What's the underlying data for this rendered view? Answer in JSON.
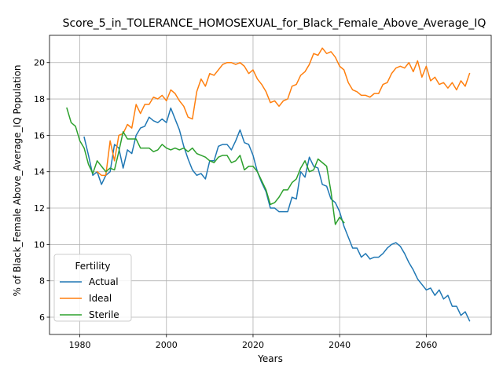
{
  "chart_data": {
    "type": "line",
    "title": "Score_5_in_TOLERANCE_HOMOSEXUAL_for_Black_Female_Above_Average_IQ",
    "xlabel": "Years",
    "ylabel": "% of Black_Female Above_Average_IQ Population",
    "xlim": [
      1973,
      2075
    ],
    "ylim": [
      5.05,
      21.5
    ],
    "x_ticks": [
      1980,
      2000,
      2020,
      2040,
      2060
    ],
    "y_ticks": [
      6,
      8,
      10,
      12,
      14,
      16,
      18,
      20
    ],
    "grid": true,
    "legend": {
      "title": "Fertility",
      "placement": "lower-left"
    },
    "series": [
      {
        "name": "Actual",
        "color": "#1f77b4",
        "x": [
          1981,
          1982,
          1983,
          1984,
          1985,
          1986,
          1987,
          1988,
          1989,
          1990,
          1991,
          1992,
          1993,
          1994,
          1995,
          1996,
          1997,
          1998,
          1999,
          2000,
          2001,
          2002,
          2003,
          2004,
          2005,
          2006,
          2007,
          2008,
          2009,
          2010,
          2011,
          2012,
          2013,
          2014,
          2015,
          2016,
          2017,
          2018,
          2019,
          2020,
          2021,
          2022,
          2023,
          2024,
          2025,
          2026,
          2027,
          2028,
          2029,
          2030,
          2031,
          2032,
          2033,
          2034,
          2035,
          2036,
          2037,
          2038,
          2039,
          2040,
          2041,
          2042,
          2043,
          2044,
          2045,
          2046,
          2047,
          2048,
          2049,
          2050,
          2051,
          2052,
          2053,
          2054,
          2055,
          2056,
          2057,
          2058,
          2059,
          2060,
          2061,
          2062,
          2063,
          2064,
          2065,
          2066,
          2067,
          2068,
          2069,
          2070
        ],
        "y": [
          15.9,
          14.9,
          13.8,
          14.0,
          13.3,
          13.8,
          14.0,
          15.5,
          15.3,
          14.2,
          15.2,
          15.0,
          16.0,
          16.4,
          16.5,
          17.0,
          16.8,
          16.7,
          16.9,
          16.7,
          17.5,
          16.9,
          16.3,
          15.4,
          14.7,
          14.1,
          13.8,
          13.9,
          13.6,
          14.6,
          14.6,
          15.4,
          15.5,
          15.5,
          15.2,
          15.7,
          16.3,
          15.6,
          15.5,
          14.9,
          14.0,
          13.4,
          12.9,
          12.0,
          12.0,
          11.8,
          11.8,
          11.8,
          12.6,
          12.5,
          14.0,
          13.7,
          14.8,
          14.3,
          14.2,
          13.3,
          13.2,
          12.5,
          12.3,
          11.8,
          11.0,
          10.4,
          9.8,
          9.8,
          9.3,
          9.5,
          9.2,
          9.3,
          9.3,
          9.5,
          9.8,
          10.0,
          10.1,
          9.9,
          9.5,
          9.0,
          8.6,
          8.1,
          7.8,
          7.5,
          7.6,
          7.2,
          7.5,
          7.0,
          7.2,
          6.6,
          6.6,
          6.1,
          6.3,
          5.8
        ]
      },
      {
        "name": "Ideal",
        "color": "#ff7f0e",
        "x": [
          1984,
          1985,
          1986,
          1987,
          1988,
          1989,
          1990,
          1991,
          1992,
          1993,
          1994,
          1995,
          1996,
          1997,
          1998,
          1999,
          2000,
          2001,
          2002,
          2003,
          2004,
          2005,
          2006,
          2007,
          2008,
          2009,
          2010,
          2011,
          2012,
          2013,
          2014,
          2015,
          2016,
          2017,
          2018,
          2019,
          2020,
          2021,
          2022,
          2023,
          2024,
          2025,
          2026,
          2027,
          2028,
          2029,
          2030,
          2031,
          2032,
          2033,
          2034,
          2035,
          2036,
          2037,
          2038,
          2039,
          2040,
          2041,
          2042,
          2043,
          2044,
          2045,
          2046,
          2047,
          2048,
          2049,
          2050,
          2051,
          2052,
          2053,
          2054,
          2055,
          2056,
          2057,
          2058,
          2059,
          2060,
          2061,
          2062,
          2063,
          2064,
          2065,
          2066,
          2067,
          2068,
          2069,
          2070
        ],
        "y": [
          14.0,
          13.8,
          13.8,
          15.7,
          14.6,
          16.0,
          16.1,
          16.6,
          16.4,
          17.7,
          17.2,
          17.7,
          17.7,
          18.1,
          18.0,
          18.2,
          17.9,
          18.5,
          18.3,
          17.9,
          17.6,
          17.0,
          16.9,
          18.4,
          19.1,
          18.7,
          19.4,
          19.3,
          19.6,
          19.9,
          20.0,
          20.0,
          19.9,
          20.0,
          19.8,
          19.4,
          19.6,
          19.1,
          18.8,
          18.4,
          17.8,
          17.9,
          17.6,
          17.9,
          18.0,
          18.7,
          18.8,
          19.3,
          19.5,
          19.9,
          20.5,
          20.4,
          20.8,
          20.5,
          20.6,
          20.3,
          19.8,
          19.6,
          18.9,
          18.5,
          18.4,
          18.2,
          18.2,
          18.1,
          18.3,
          18.3,
          18.8,
          18.9,
          19.4,
          19.7,
          19.8,
          19.7,
          20.0,
          19.5,
          20.1,
          19.2,
          19.8,
          19.0,
          19.2,
          18.8,
          18.9,
          18.6,
          18.9,
          18.5,
          19.0,
          18.7,
          19.4
        ]
      },
      {
        "name": "Sterile",
        "color": "#2ca02c",
        "x": [
          1977,
          1978,
          1979,
          1980,
          1981,
          1982,
          1983,
          1984,
          1985,
          1986,
          1987,
          1988,
          1989,
          1990,
          1991,
          1992,
          1993,
          1994,
          1995,
          1996,
          1997,
          1998,
          1999,
          2000,
          2001,
          2002,
          2003,
          2004,
          2005,
          2006,
          2007,
          2008,
          2009,
          2010,
          2011,
          2012,
          2013,
          2014,
          2015,
          2016,
          2017,
          2018,
          2019,
          2020,
          2021,
          2022,
          2023,
          2024,
          2025,
          2026,
          2027,
          2028,
          2029,
          2030,
          2031,
          2032,
          2033,
          2034,
          2035,
          2036,
          2037,
          2038,
          2039,
          2040,
          2041
        ],
        "y": [
          17.5,
          16.7,
          16.5,
          15.7,
          15.3,
          14.4,
          13.9,
          14.6,
          14.3,
          14.0,
          14.2,
          14.1,
          15.1,
          16.2,
          15.8,
          15.8,
          15.8,
          15.3,
          15.3,
          15.3,
          15.1,
          15.2,
          15.5,
          15.3,
          15.2,
          15.3,
          15.2,
          15.3,
          15.1,
          15.3,
          15.0,
          14.9,
          14.8,
          14.6,
          14.5,
          14.8,
          14.9,
          14.9,
          14.5,
          14.6,
          14.9,
          14.1,
          14.3,
          14.3,
          14.0,
          13.5,
          13.0,
          12.2,
          12.3,
          12.6,
          13.0,
          13.0,
          13.4,
          13.6,
          14.2,
          14.6,
          14.0,
          14.1,
          14.7,
          14.5,
          14.3,
          12.9,
          11.1,
          11.5,
          11.2
        ]
      }
    ]
  }
}
